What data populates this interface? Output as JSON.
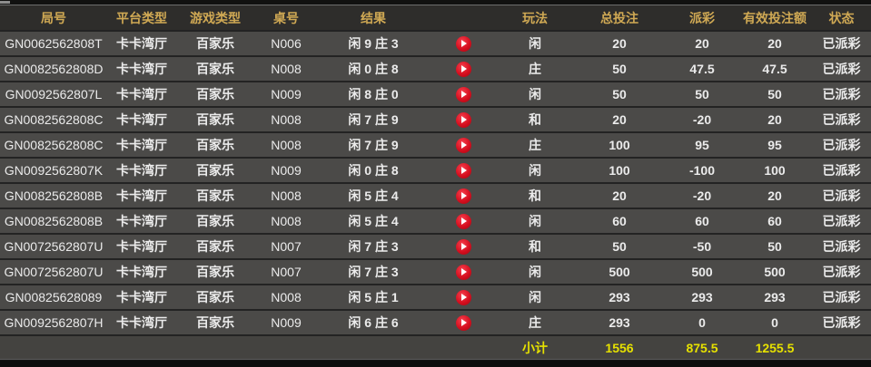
{
  "colors": {
    "header_text": "#d0a954",
    "row_background": "#4b4a48",
    "header_background": "#2e2d2b",
    "row_text": "#ebebeb",
    "payout_positive_red": "#c41230",
    "payout_negative_green": "#35d435",
    "status_paid_green": "#2fd32f",
    "subtotal_yellow": "#e6e100",
    "play_button_red": "#d60f1f"
  },
  "icons": {
    "video": "play-circle-icon"
  },
  "table": {
    "columns": [
      "局号",
      "平台类型",
      "游戏类型",
      "桌号",
      "结果",
      "",
      "玩法",
      "总投注",
      "派彩",
      "有效投注额",
      "状态"
    ],
    "rows": [
      {
        "round_id": "GN0062562808T",
        "platform": "卡卡湾厅",
        "game": "百家乐",
        "table_no": "N006",
        "result": "闲 9 庄 3",
        "bet_type": "闲",
        "total_bet": "20",
        "payout": "20",
        "payout_color": "red",
        "valid_bet": "20",
        "status": "已派彩"
      },
      {
        "round_id": "GN0082562808D",
        "platform": "卡卡湾厅",
        "game": "百家乐",
        "table_no": "N008",
        "result": "闲 0 庄 8",
        "bet_type": "庄",
        "total_bet": "50",
        "payout": "47.5",
        "payout_color": "red",
        "valid_bet": "47.5",
        "status": "已派彩"
      },
      {
        "round_id": "GN0092562807L",
        "platform": "卡卡湾厅",
        "game": "百家乐",
        "table_no": "N009",
        "result": "闲 8 庄 0",
        "bet_type": "闲",
        "total_bet": "50",
        "payout": "50",
        "payout_color": "red",
        "valid_bet": "50",
        "status": "已派彩"
      },
      {
        "round_id": "GN0082562808C",
        "platform": "卡卡湾厅",
        "game": "百家乐",
        "table_no": "N008",
        "result": "闲 7 庄 9",
        "bet_type": "和",
        "total_bet": "20",
        "payout": "-20",
        "payout_color": "green",
        "valid_bet": "20",
        "status": "已派彩"
      },
      {
        "round_id": "GN0082562808C",
        "platform": "卡卡湾厅",
        "game": "百家乐",
        "table_no": "N008",
        "result": "闲 7 庄 9",
        "bet_type": "庄",
        "total_bet": "100",
        "payout": "95",
        "payout_color": "red",
        "valid_bet": "95",
        "status": "已派彩"
      },
      {
        "round_id": "GN0092562807K",
        "platform": "卡卡湾厅",
        "game": "百家乐",
        "table_no": "N009",
        "result": "闲 0 庄 8",
        "bet_type": "闲",
        "total_bet": "100",
        "payout": "-100",
        "payout_color": "green",
        "valid_bet": "100",
        "status": "已派彩"
      },
      {
        "round_id": "GN0082562808B",
        "platform": "卡卡湾厅",
        "game": "百家乐",
        "table_no": "N008",
        "result": "闲 5 庄 4",
        "bet_type": "和",
        "total_bet": "20",
        "payout": "-20",
        "payout_color": "green",
        "valid_bet": "20",
        "status": "已派彩"
      },
      {
        "round_id": "GN0082562808B",
        "platform": "卡卡湾厅",
        "game": "百家乐",
        "table_no": "N008",
        "result": "闲 5 庄 4",
        "bet_type": "闲",
        "total_bet": "60",
        "payout": "60",
        "payout_color": "red",
        "valid_bet": "60",
        "status": "已派彩"
      },
      {
        "round_id": "GN0072562807U",
        "platform": "卡卡湾厅",
        "game": "百家乐",
        "table_no": "N007",
        "result": "闲 7 庄 3",
        "bet_type": "和",
        "total_bet": "50",
        "payout": "-50",
        "payout_color": "green",
        "valid_bet": "50",
        "status": "已派彩"
      },
      {
        "round_id": "GN0072562807U",
        "platform": "卡卡湾厅",
        "game": "百家乐",
        "table_no": "N007",
        "result": "闲 7 庄 3",
        "bet_type": "闲",
        "total_bet": "500",
        "payout": "500",
        "payout_color": "red",
        "valid_bet": "500",
        "status": "已派彩"
      },
      {
        "round_id": "GN00825628089",
        "platform": "卡卡湾厅",
        "game": "百家乐",
        "table_no": "N008",
        "result": "闲 5 庄 1",
        "bet_type": "闲",
        "total_bet": "293",
        "payout": "293",
        "payout_color": "red",
        "valid_bet": "293",
        "status": "已派彩"
      },
      {
        "round_id": "GN0092562807H",
        "platform": "卡卡湾厅",
        "game": "百家乐",
        "table_no": "N009",
        "result": "闲 6 庄 6",
        "bet_type": "庄",
        "total_bet": "293",
        "payout": "0",
        "payout_color": "white",
        "valid_bet": "0",
        "status": "已派彩"
      }
    ],
    "footer": {
      "label": "小计",
      "total_bet": "1556",
      "payout": "875.5",
      "valid_bet": "1255.5"
    }
  }
}
